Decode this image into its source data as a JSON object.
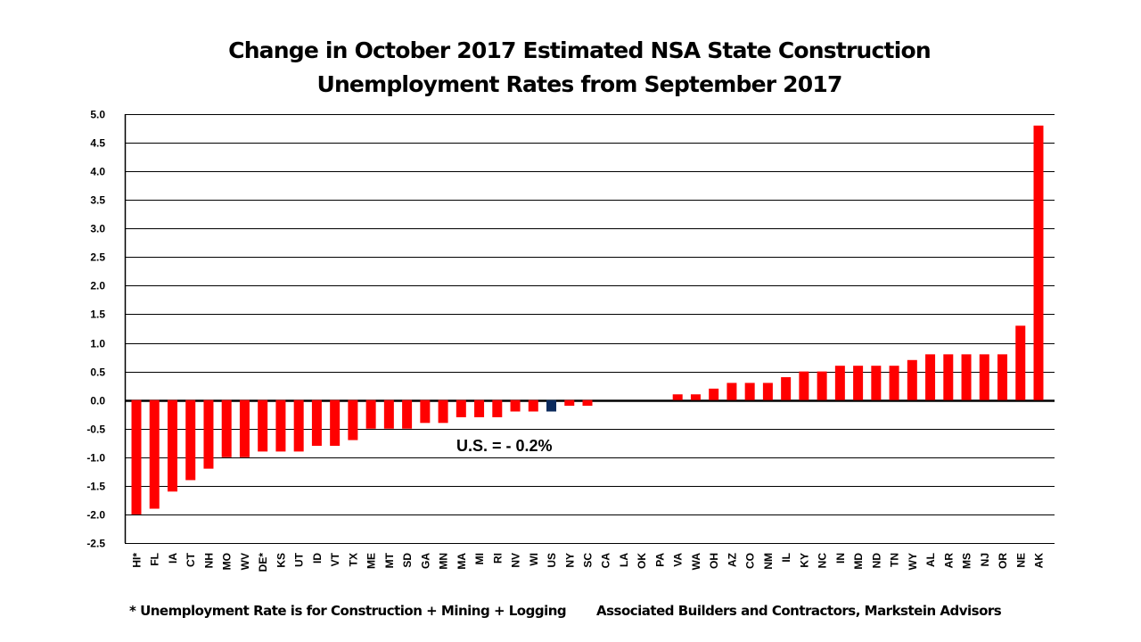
{
  "chart_data": {
    "type": "bar",
    "title": [
      "Change in October 2017 Estimated NSA State Construction",
      "Unemployment Rates from September 2017"
    ],
    "xlabel": "",
    "ylabel": "",
    "ylim": [
      -2.5,
      5.0
    ],
    "yticks": [
      "5.0",
      "4.5",
      "4.0",
      "3.5",
      "3.0",
      "2.5",
      "2.0",
      "1.5",
      "1.0",
      "0.5",
      "0.0",
      "-0.5",
      "-1.0",
      "-1.5",
      "-2.0",
      "-2.5"
    ],
    "grid": true,
    "categories": [
      "HI*",
      "FL",
      "IA",
      "CT",
      "NH",
      "MO",
      "WV",
      "DE*",
      "KS",
      "UT",
      "ID",
      "VT",
      "TX",
      "ME",
      "MT",
      "SD",
      "GA",
      "MN",
      "MA",
      "MI",
      "RI",
      "NV",
      "WI",
      "US",
      "NY",
      "SC",
      "CA",
      "LA",
      "OK",
      "PA",
      "VA",
      "WA",
      "OH",
      "AZ",
      "CO",
      "NM",
      "IL",
      "KY",
      "NC",
      "IN",
      "MD",
      "ND",
      "TN",
      "WY",
      "AL",
      "AR",
      "MS",
      "NJ",
      "OR",
      "NE",
      "AK"
    ],
    "values": [
      -2.0,
      -1.9,
      -1.6,
      -1.4,
      -1.2,
      -1.0,
      -1.0,
      -0.9,
      -0.9,
      -0.9,
      -0.8,
      -0.8,
      -0.7,
      -0.5,
      -0.5,
      -0.5,
      -0.4,
      -0.4,
      -0.3,
      -0.3,
      -0.3,
      -0.2,
      -0.2,
      -0.2,
      -0.1,
      -0.1,
      0.0,
      0.0,
      0.0,
      0.0,
      0.1,
      0.1,
      0.2,
      0.3,
      0.3,
      0.3,
      0.4,
      0.5,
      0.5,
      0.6,
      0.6,
      0.6,
      0.6,
      0.7,
      0.8,
      0.8,
      0.8,
      0.8,
      0.8,
      1.3,
      4.8
    ],
    "highlight": "US",
    "annotation": "U.S. = - 0.2%",
    "colors": {
      "bar": "#ff0000",
      "highlight": "#0b2a5c",
      "grid": "#000000"
    }
  },
  "footer": {
    "note": "* Unemployment Rate is for Construction + Mining + Logging",
    "source": "Associated Builders and Contractors, Markstein Advisors"
  }
}
